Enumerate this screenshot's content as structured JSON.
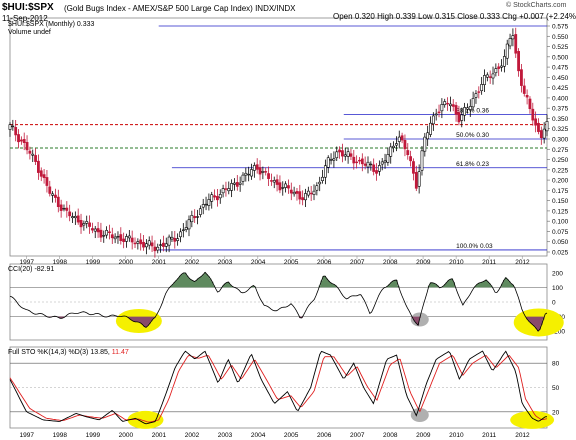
{
  "header": {
    "symbol": "$HUI:$SPX",
    "description": "(Gold Bugs Index - AMEX/S&P 500 Large Cap Index) INDX/INDX",
    "date": "11-Sep-2012",
    "open_label": "Open",
    "open": "0.320",
    "high_label": "High",
    "high": "0.339",
    "low_label": "Low",
    "low": "0.315",
    "close_label": "Close",
    "close": "0.333",
    "chg_label": "Chg",
    "chg": "+0.007 (+2.24%)",
    "watermark": "© StockCharts.com"
  },
  "legend": {
    "price": "$HUI:$SPX (Monthly) 0.333",
    "volume": "Volume undef",
    "cci": "CCI(20) -82.91",
    "sto_prefix": "Full STO %K(14,3) %D(3) 13.85, ",
    "sto_d": "11.47"
  },
  "colors": {
    "up": "#000000",
    "down": "#c0183a",
    "fib": "#2020c8",
    "red_dash": "#cc0000",
    "green_dash": "#2a7a2a",
    "cci_pos": "#5f8a5f",
    "cci_neg": "#8a4a6a",
    "highlight": "#f5f000",
    "gray_marker": "#b0b0b0",
    "k_line": "#000000",
    "d_line": "#e02020"
  },
  "chart_data": [
    {
      "type": "candlestick",
      "title": "$HUI:$SPX (Monthly) 0.333",
      "x_labels": [
        "1997",
        "1998",
        "1999",
        "2000",
        "2001",
        "2002",
        "2003",
        "2004",
        "2005",
        "2006",
        "2007",
        "2008",
        "2009",
        "2010",
        "2011",
        "2012"
      ],
      "y_ticks": [
        "0.025",
        "0.050",
        "0.075",
        "0.100",
        "0.125",
        "0.150",
        "0.175",
        "0.200",
        "0.225",
        "0.250",
        "0.275",
        "0.300",
        "0.325",
        "0.350",
        "0.375",
        "0.400",
        "0.425",
        "0.450",
        "0.475",
        "0.500",
        "0.525",
        "0.550",
        "0.575"
      ],
      "ylim": [
        0.025,
        0.575
      ],
      "anchors": [
        [
          1996.5,
          0.33
        ],
        [
          1996.9,
          0.29
        ],
        [
          1997.3,
          0.24
        ],
        [
          1997.7,
          0.17
        ],
        [
          1998.2,
          0.12
        ],
        [
          1998.7,
          0.095
        ],
        [
          1999.2,
          0.072
        ],
        [
          1999.7,
          0.062
        ],
        [
          2000.3,
          0.05
        ],
        [
          2000.9,
          0.036
        ],
        [
          2001.2,
          0.045
        ],
        [
          2001.6,
          0.065
        ],
        [
          2002.1,
          0.115
        ],
        [
          2002.5,
          0.15
        ],
        [
          2002.9,
          0.17
        ],
        [
          2003.3,
          0.19
        ],
        [
          2003.7,
          0.215
        ],
        [
          2003.95,
          0.235
        ],
        [
          2004.3,
          0.205
        ],
        [
          2004.7,
          0.185
        ],
        [
          2005.1,
          0.17
        ],
        [
          2005.4,
          0.155
        ],
        [
          2005.8,
          0.185
        ],
        [
          2006.1,
          0.24
        ],
        [
          2006.4,
          0.27
        ],
        [
          2006.8,
          0.255
        ],
        [
          2007.2,
          0.24
        ],
        [
          2007.6,
          0.225
        ],
        [
          2007.95,
          0.26
        ],
        [
          2008.25,
          0.31
        ],
        [
          2008.55,
          0.26
        ],
        [
          2008.8,
          0.19
        ],
        [
          2009.05,
          0.3
        ],
        [
          2009.4,
          0.37
        ],
        [
          2009.8,
          0.39
        ],
        [
          2010.1,
          0.35
        ],
        [
          2010.4,
          0.38
        ],
        [
          2010.8,
          0.44
        ],
        [
          2011.1,
          0.46
        ],
        [
          2011.45,
          0.49
        ],
        [
          2011.7,
          0.57
        ],
        [
          2011.85,
          0.48
        ],
        [
          2012.05,
          0.41
        ],
        [
          2012.35,
          0.35
        ],
        [
          2012.55,
          0.3
        ],
        [
          2012.7,
          0.333
        ]
      ],
      "fib_lines": [
        {
          "label": "38.2% 0.36",
          "value": 0.36
        },
        {
          "label": "50.0% 0.30",
          "value": 0.3
        },
        {
          "label": "61.8% 0.23",
          "value": 0.23
        },
        {
          "label": "100.0% 0.03",
          "value": 0.03
        }
      ],
      "dashed_lines": [
        {
          "color": "red",
          "value": 0.335
        },
        {
          "color": "green",
          "value": 0.278
        }
      ]
    },
    {
      "type": "line",
      "title": "CCI(20) -82.91",
      "y_ticks": [
        "200",
        "100",
        "0",
        "-100",
        "-200"
      ],
      "ylim": [
        -260,
        260
      ],
      "anchors": [
        [
          1996.5,
          40
        ],
        [
          1997.0,
          -60
        ],
        [
          1997.5,
          -90
        ],
        [
          1998.0,
          -110
        ],
        [
          1998.5,
          -70
        ],
        [
          1999.0,
          -80
        ],
        [
          1999.5,
          -100
        ],
        [
          1999.8,
          -90
        ],
        [
          2000.2,
          -120
        ],
        [
          2000.6,
          -170
        ],
        [
          2000.9,
          -110
        ],
        [
          2001.2,
          50
        ],
        [
          2001.5,
          150
        ],
        [
          2001.8,
          200
        ],
        [
          2002.1,
          130
        ],
        [
          2002.4,
          210
        ],
        [
          2002.8,
          70
        ],
        [
          2003.1,
          140
        ],
        [
          2003.5,
          60
        ],
        [
          2003.9,
          110
        ],
        [
          2004.2,
          -30
        ],
        [
          2004.6,
          -60
        ],
        [
          2005.0,
          -10
        ],
        [
          2005.3,
          -110
        ],
        [
          2005.7,
          20
        ],
        [
          2006.0,
          180
        ],
        [
          2006.3,
          120
        ],
        [
          2006.7,
          20
        ],
        [
          2007.1,
          60
        ],
        [
          2007.4,
          -80
        ],
        [
          2007.8,
          100
        ],
        [
          2008.2,
          150
        ],
        [
          2008.5,
          -40
        ],
        [
          2008.85,
          -160
        ],
        [
          2009.2,
          140
        ],
        [
          2009.5,
          100
        ],
        [
          2009.9,
          160
        ],
        [
          2010.2,
          -30
        ],
        [
          2010.5,
          90
        ],
        [
          2010.9,
          160
        ],
        [
          2011.2,
          60
        ],
        [
          2011.5,
          160
        ],
        [
          2011.75,
          120
        ],
        [
          2012.0,
          -60
        ],
        [
          2012.3,
          -160
        ],
        [
          2012.5,
          -200
        ],
        [
          2012.7,
          -83
        ]
      ]
    },
    {
      "type": "line",
      "title": "Full STO %K(14,3) %D(3) 13.85, 11.47",
      "x_labels": [
        "1997",
        "1998",
        "1999",
        "2000",
        "2001",
        "2002",
        "2003",
        "2004",
        "2005",
        "2006",
        "2007",
        "2008",
        "2009",
        "2010",
        "2011",
        "2012"
      ],
      "y_ticks": [
        "80",
        "50",
        "20"
      ],
      "ylim": [
        0,
        100
      ],
      "k_anchors": [
        [
          1996.5,
          60
        ],
        [
          1997.0,
          20
        ],
        [
          1997.5,
          10
        ],
        [
          1998.0,
          8
        ],
        [
          1998.5,
          18
        ],
        [
          1998.8,
          14
        ],
        [
          1999.2,
          10
        ],
        [
          1999.6,
          22
        ],
        [
          1999.9,
          8
        ],
        [
          2000.3,
          12
        ],
        [
          2000.6,
          5
        ],
        [
          2000.9,
          8
        ],
        [
          2001.2,
          40
        ],
        [
          2001.5,
          75
        ],
        [
          2001.8,
          95
        ],
        [
          2002.1,
          85
        ],
        [
          2002.4,
          95
        ],
        [
          2002.8,
          55
        ],
        [
          2003.1,
          85
        ],
        [
          2003.4,
          55
        ],
        [
          2003.8,
          92
        ],
        [
          2004.1,
          60
        ],
        [
          2004.5,
          30
        ],
        [
          2004.9,
          45
        ],
        [
          2005.2,
          20
        ],
        [
          2005.6,
          50
        ],
        [
          2005.9,
          95
        ],
        [
          2006.2,
          90
        ],
        [
          2006.6,
          60
        ],
        [
          2006.9,
          80
        ],
        [
          2007.2,
          50
        ],
        [
          2007.5,
          30
        ],
        [
          2007.9,
          85
        ],
        [
          2008.2,
          90
        ],
        [
          2008.5,
          40
        ],
        [
          2008.8,
          15
        ],
        [
          2009.1,
          55
        ],
        [
          2009.4,
          85
        ],
        [
          2009.8,
          95
        ],
        [
          2010.1,
          60
        ],
        [
          2010.4,
          85
        ],
        [
          2010.8,
          95
        ],
        [
          2011.1,
          70
        ],
        [
          2011.5,
          95
        ],
        [
          2011.8,
          70
        ],
        [
          2012.0,
          30
        ],
        [
          2012.3,
          12
        ],
        [
          2012.5,
          8
        ],
        [
          2012.7,
          14
        ]
      ],
      "d_anchors": [
        [
          1996.5,
          62
        ],
        [
          1997.1,
          24
        ],
        [
          1997.6,
          12
        ],
        [
          1998.1,
          9
        ],
        [
          1998.6,
          16
        ],
        [
          1998.9,
          14
        ],
        [
          1999.3,
          12
        ],
        [
          1999.7,
          18
        ],
        [
          2000.0,
          10
        ],
        [
          2000.4,
          11
        ],
        [
          2000.7,
          7
        ],
        [
          2001.0,
          10
        ],
        [
          2001.3,
          35
        ],
        [
          2001.6,
          70
        ],
        [
          2001.9,
          90
        ],
        [
          2002.2,
          86
        ],
        [
          2002.5,
          90
        ],
        [
          2002.9,
          60
        ],
        [
          2003.2,
          78
        ],
        [
          2003.5,
          60
        ],
        [
          2003.9,
          85
        ],
        [
          2004.2,
          64
        ],
        [
          2004.6,
          35
        ],
        [
          2005.0,
          40
        ],
        [
          2005.3,
          25
        ],
        [
          2005.7,
          45
        ],
        [
          2006.0,
          88
        ],
        [
          2006.3,
          88
        ],
        [
          2006.7,
          64
        ],
        [
          2007.0,
          76
        ],
        [
          2007.3,
          52
        ],
        [
          2007.6,
          34
        ],
        [
          2008.0,
          78
        ],
        [
          2008.3,
          86
        ],
        [
          2008.6,
          45
        ],
        [
          2008.9,
          20
        ],
        [
          2009.2,
          50
        ],
        [
          2009.5,
          80
        ],
        [
          2009.9,
          90
        ],
        [
          2010.2,
          65
        ],
        [
          2010.5,
          80
        ],
        [
          2010.9,
          90
        ],
        [
          2011.2,
          74
        ],
        [
          2011.6,
          90
        ],
        [
          2011.9,
          74
        ],
        [
          2012.1,
          36
        ],
        [
          2012.4,
          15
        ],
        [
          2012.6,
          10
        ],
        [
          2012.75,
          11.47
        ]
      ]
    }
  ]
}
